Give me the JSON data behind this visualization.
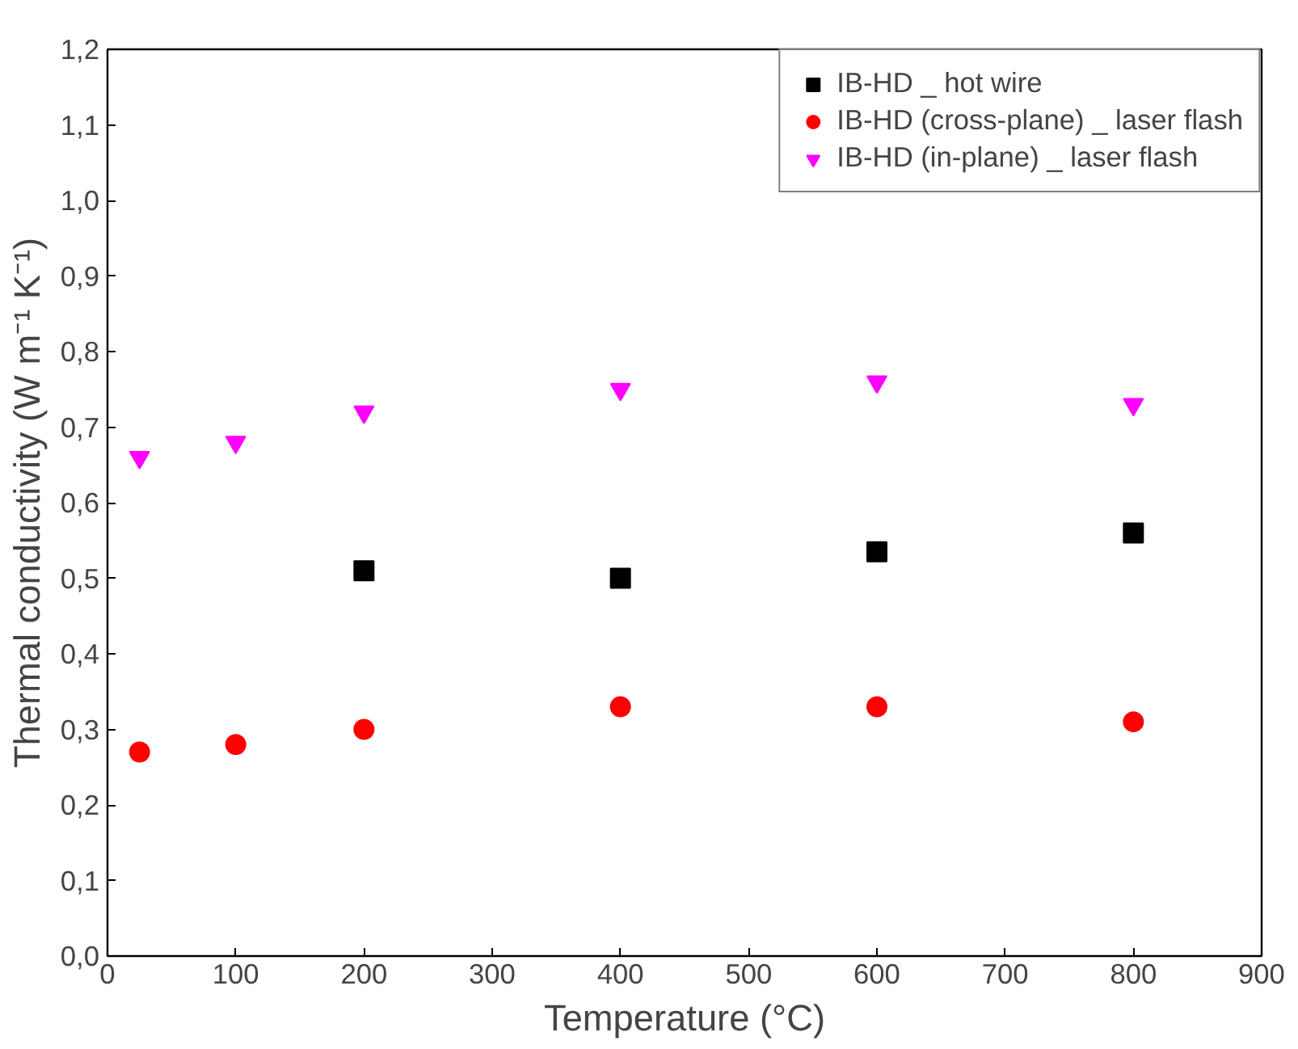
{
  "chart_data": {
    "type": "scatter",
    "xlabel": "Temperature (°C)",
    "ylabel": "Thermal conductivity (W m⁻¹ K⁻¹)",
    "xlim": [
      0,
      900
    ],
    "xticks": [
      0,
      100,
      200,
      300,
      400,
      500,
      600,
      700,
      800,
      900
    ],
    "ylim": [
      0,
      1.2
    ],
    "yticks": [
      {
        "value": 0,
        "label": "0,0"
      },
      {
        "value": 0.1,
        "label": "0,1"
      },
      {
        "value": 0.2,
        "label": "0,2"
      },
      {
        "value": 0.3,
        "label": "0,3"
      },
      {
        "value": 0.4,
        "label": "0,4"
      },
      {
        "value": 0.5,
        "label": "0,5"
      },
      {
        "value": 0.6,
        "label": "0,6"
      },
      {
        "value": 0.7,
        "label": "0,7"
      },
      {
        "value": 0.8,
        "label": "0,8"
      },
      {
        "value": 0.9,
        "label": "0,9"
      },
      {
        "value": 1.0,
        "label": "1,0"
      },
      {
        "value": 1.1,
        "label": "1,1"
      },
      {
        "value": 1.2,
        "label": "1,2"
      }
    ],
    "grid": false,
    "legend": "top right",
    "series": [
      {
        "name": "IB-HD _ hot wire",
        "color": "#000000",
        "marker": "square",
        "x": [
          200,
          400,
          600,
          800
        ],
        "values": [
          0.51,
          0.5,
          0.535,
          0.56
        ]
      },
      {
        "name": "IB-HD (cross-plane) _ laser flash",
        "color": "#ff0000",
        "marker": "circle",
        "x": [
          25,
          100,
          200,
          400,
          600,
          800
        ],
        "values": [
          0.27,
          0.28,
          0.3,
          0.33,
          0.33,
          0.31
        ]
      },
      {
        "name": "IB-HD (in-plane) _ laser flash",
        "color": "#ff00ff",
        "marker": "triangle",
        "x": [
          25,
          100,
          200,
          400,
          600,
          800
        ],
        "values": [
          0.66,
          0.68,
          0.72,
          0.75,
          0.76,
          0.73
        ]
      }
    ]
  }
}
